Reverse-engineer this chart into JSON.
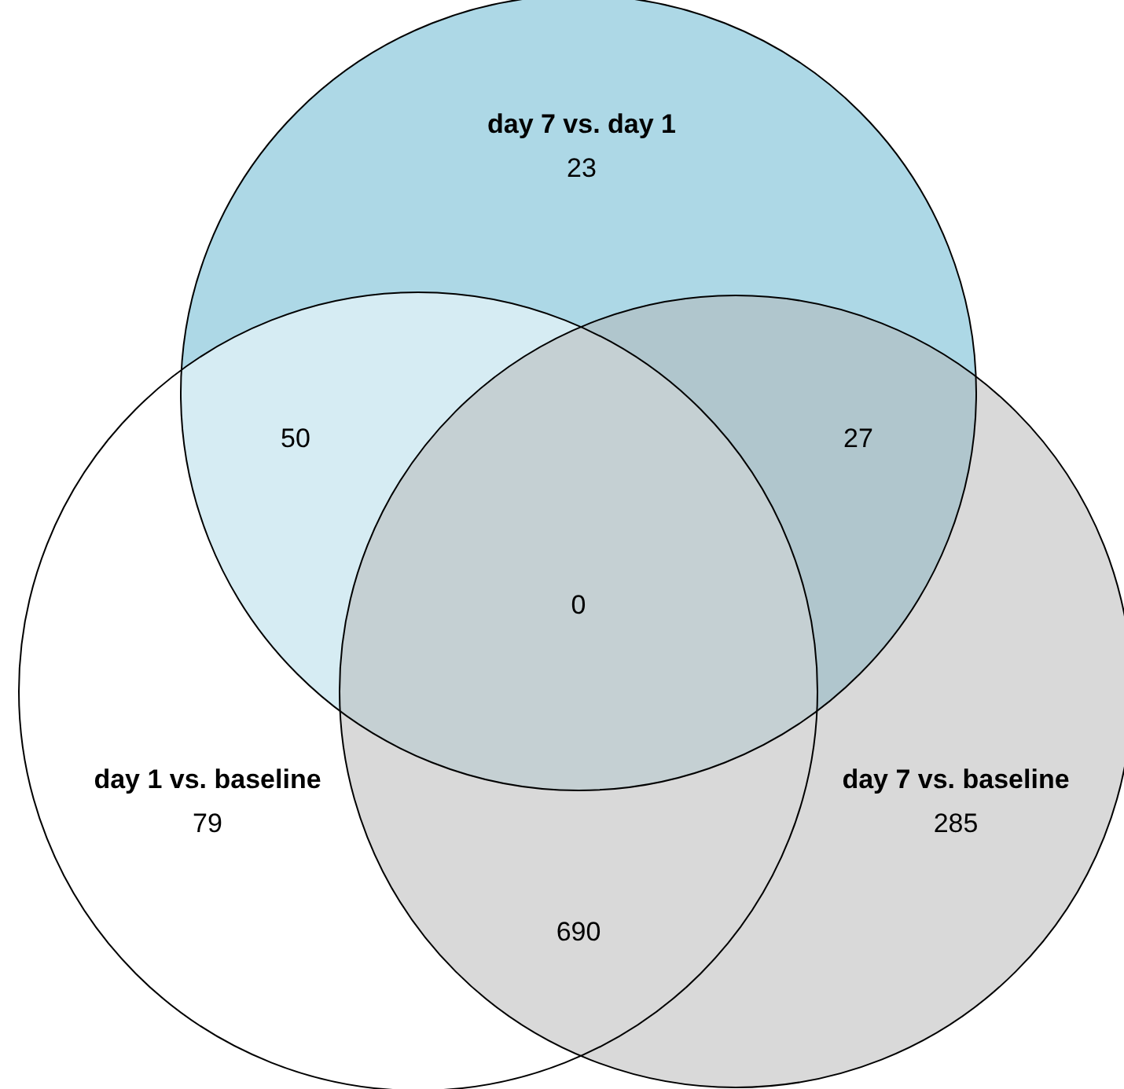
{
  "chart_data": {
    "type": "other",
    "categories": [
      "day 7 vs. day 1",
      "day 1 vs. baseline",
      "day 7 vs. baseline"
    ],
    "values": [
      23,
      79,
      285
    ],
    "colors": [
      "#add8e6",
      "#ffffff",
      "#d9d9d9"
    ],
    "data_labels": true,
    "annotations": [
      "50",
      "27",
      "690",
      "0"
    ]
  }
}
